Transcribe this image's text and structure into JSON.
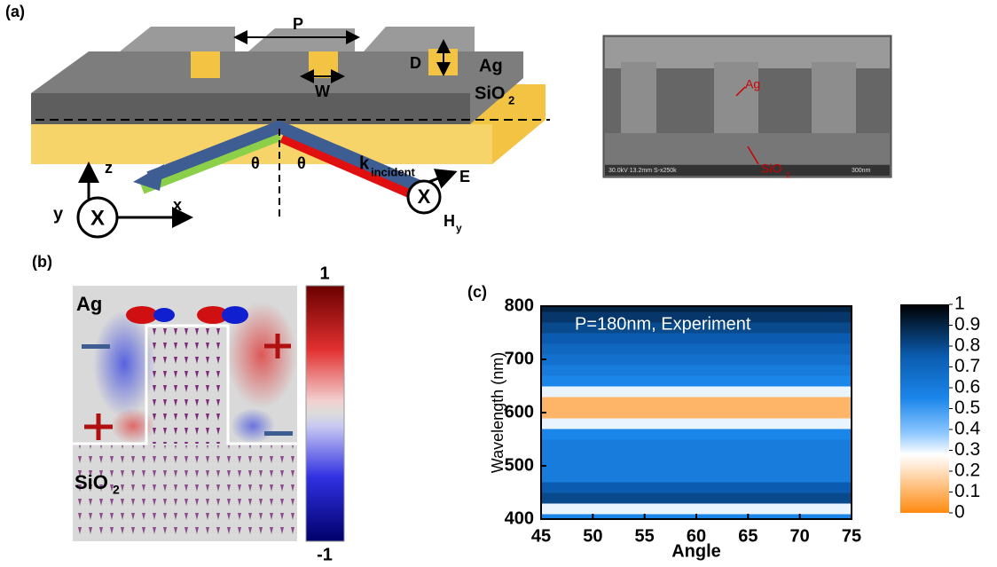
{
  "panels": {
    "a": {
      "label": "(a)",
      "period": "P",
      "depth": "D",
      "width": "W",
      "metal": "Ag",
      "substrate": {
        "base": "SiO",
        "sub": "2"
      },
      "theta_left": "θ",
      "theta_right": "θ",
      "k": {
        "base": "k",
        "sub": "incident"
      },
      "e_field": "E",
      "h_field": {
        "base": "H",
        "sub": "y"
      },
      "axis_z": "z",
      "axis_x": "x",
      "axis_y": "y",
      "cross_left": "X",
      "cross_right": "X",
      "sem": {
        "metal": "Ag",
        "substrate": {
          "base": "SiO",
          "sub": "2"
        },
        "info": "30.0kV 13.2mm S-x250k",
        "scale": "300nm"
      }
    },
    "b": {
      "label": "(b)",
      "metal": "Ag",
      "substrate": {
        "base": "SiO",
        "sub": "2"
      }
    },
    "c": {
      "label": "(c)"
    }
  },
  "chart_data": [
    {
      "type": "field-map",
      "clim": [
        -1,
        1
      ]
    },
    {
      "type": "heatmap",
      "annotation": "P=180nm, Experiment",
      "x_label": "Angle",
      "y_label": "Wavelength (nm)",
      "xlim": [
        45,
        75
      ],
      "xticks": [
        45,
        50,
        55,
        60,
        65,
        70,
        75
      ],
      "ylim": [
        400,
        800
      ],
      "yticks": [
        400,
        500,
        600,
        700,
        800
      ],
      "y": [
        400,
        420,
        440,
        460,
        480,
        500,
        520,
        540,
        560,
        580,
        600,
        620,
        640,
        660,
        680,
        700,
        720,
        740,
        760,
        780,
        800
      ],
      "values": [
        0.55,
        0.3,
        0.8,
        0.75,
        0.6,
        0.6,
        0.6,
        0.6,
        0.55,
        0.3,
        0.1,
        0.1,
        0.3,
        0.55,
        0.6,
        0.65,
        0.7,
        0.75,
        0.8,
        0.85,
        0.9
      ],
      "clim": [
        0,
        1
      ],
      "cticks": [
        0,
        0.1,
        0.2,
        0.3,
        0.4,
        0.5,
        0.6,
        0.7,
        0.8,
        0.9,
        1
      ],
      "colormap": [
        {
          "value": 0,
          "color": "#ff8a10"
        },
        {
          "value": 0.22,
          "color": "#ffe8d0"
        },
        {
          "value": 0.28,
          "color": "#ffffff"
        },
        {
          "value": 0.38,
          "color": "#8fc8ff"
        },
        {
          "value": 0.55,
          "color": "#1b86ea"
        },
        {
          "value": 0.75,
          "color": "#0b5cb0"
        },
        {
          "value": 1,
          "color": "#000000"
        }
      ]
    }
  ]
}
